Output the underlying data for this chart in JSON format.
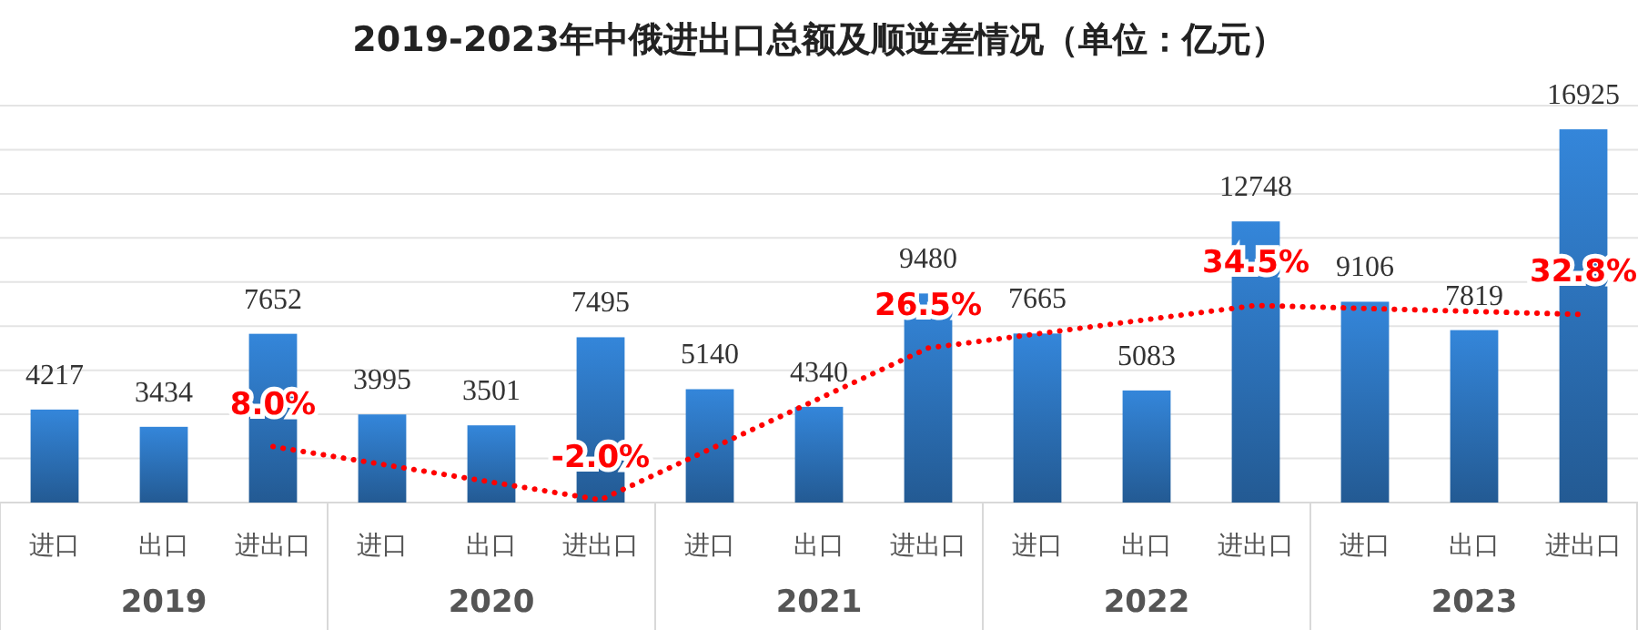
{
  "chart_data": {
    "type": "bar",
    "title": "2019-2023年中俄进出口总额及顺逆差情况（单位：亿元）",
    "categories": [
      "进口",
      "出口",
      "进出口",
      "进口",
      "出口",
      "进出口",
      "进口",
      "出口",
      "进出口",
      "进口",
      "出口",
      "进出口",
      "进口",
      "出口",
      "进出口"
    ],
    "series": [
      {
        "color": "#2a6cb0",
        "values": [
          4217,
          3434,
          7652,
          3995,
          3501,
          7495,
          5140,
          4340,
          9480,
          7665,
          5083,
          12748,
          9106,
          7819,
          16925
        ]
      },
      {
        "type": "line",
        "axis": "y2",
        "color": "#ff0000",
        "line_style": "dotted",
        "marker": "none",
        "values": [
          null,
          null,
          8.0,
          null,
          null,
          -2.0,
          null,
          null,
          26.5,
          null,
          null,
          34.5,
          null,
          null,
          32.8
        ],
        "value_labels": [
          null,
          null,
          "8.0%",
          null,
          null,
          "-2.0%",
          null,
          null,
          "26.5%",
          null,
          null,
          "34.5%",
          null,
          null,
          "32.8%"
        ]
      }
    ],
    "ylim": [
      0,
      18000
    ],
    "yticks": [
      {
        "value": 0,
        "label": null
      },
      {
        "value": 2000,
        "label": null
      },
      {
        "value": 4000,
        "label": null
      },
      {
        "value": 6000,
        "label": null
      },
      {
        "value": 8000,
        "label": null
      },
      {
        "value": 10000,
        "label": null
      },
      {
        "value": 12000,
        "label": null
      },
      {
        "value": 14000,
        "label": null
      },
      {
        "value": 16000,
        "label": null
      },
      {
        "value": 18000,
        "label": null
      }
    ],
    "y2lim": [
      -2.5,
      72
    ],
    "annotations": [
      "2019",
      "2020",
      "2021",
      "2022",
      "2023"
    ],
    "data_labels": true,
    "grid": "y",
    "tick_labels": "x"
  }
}
